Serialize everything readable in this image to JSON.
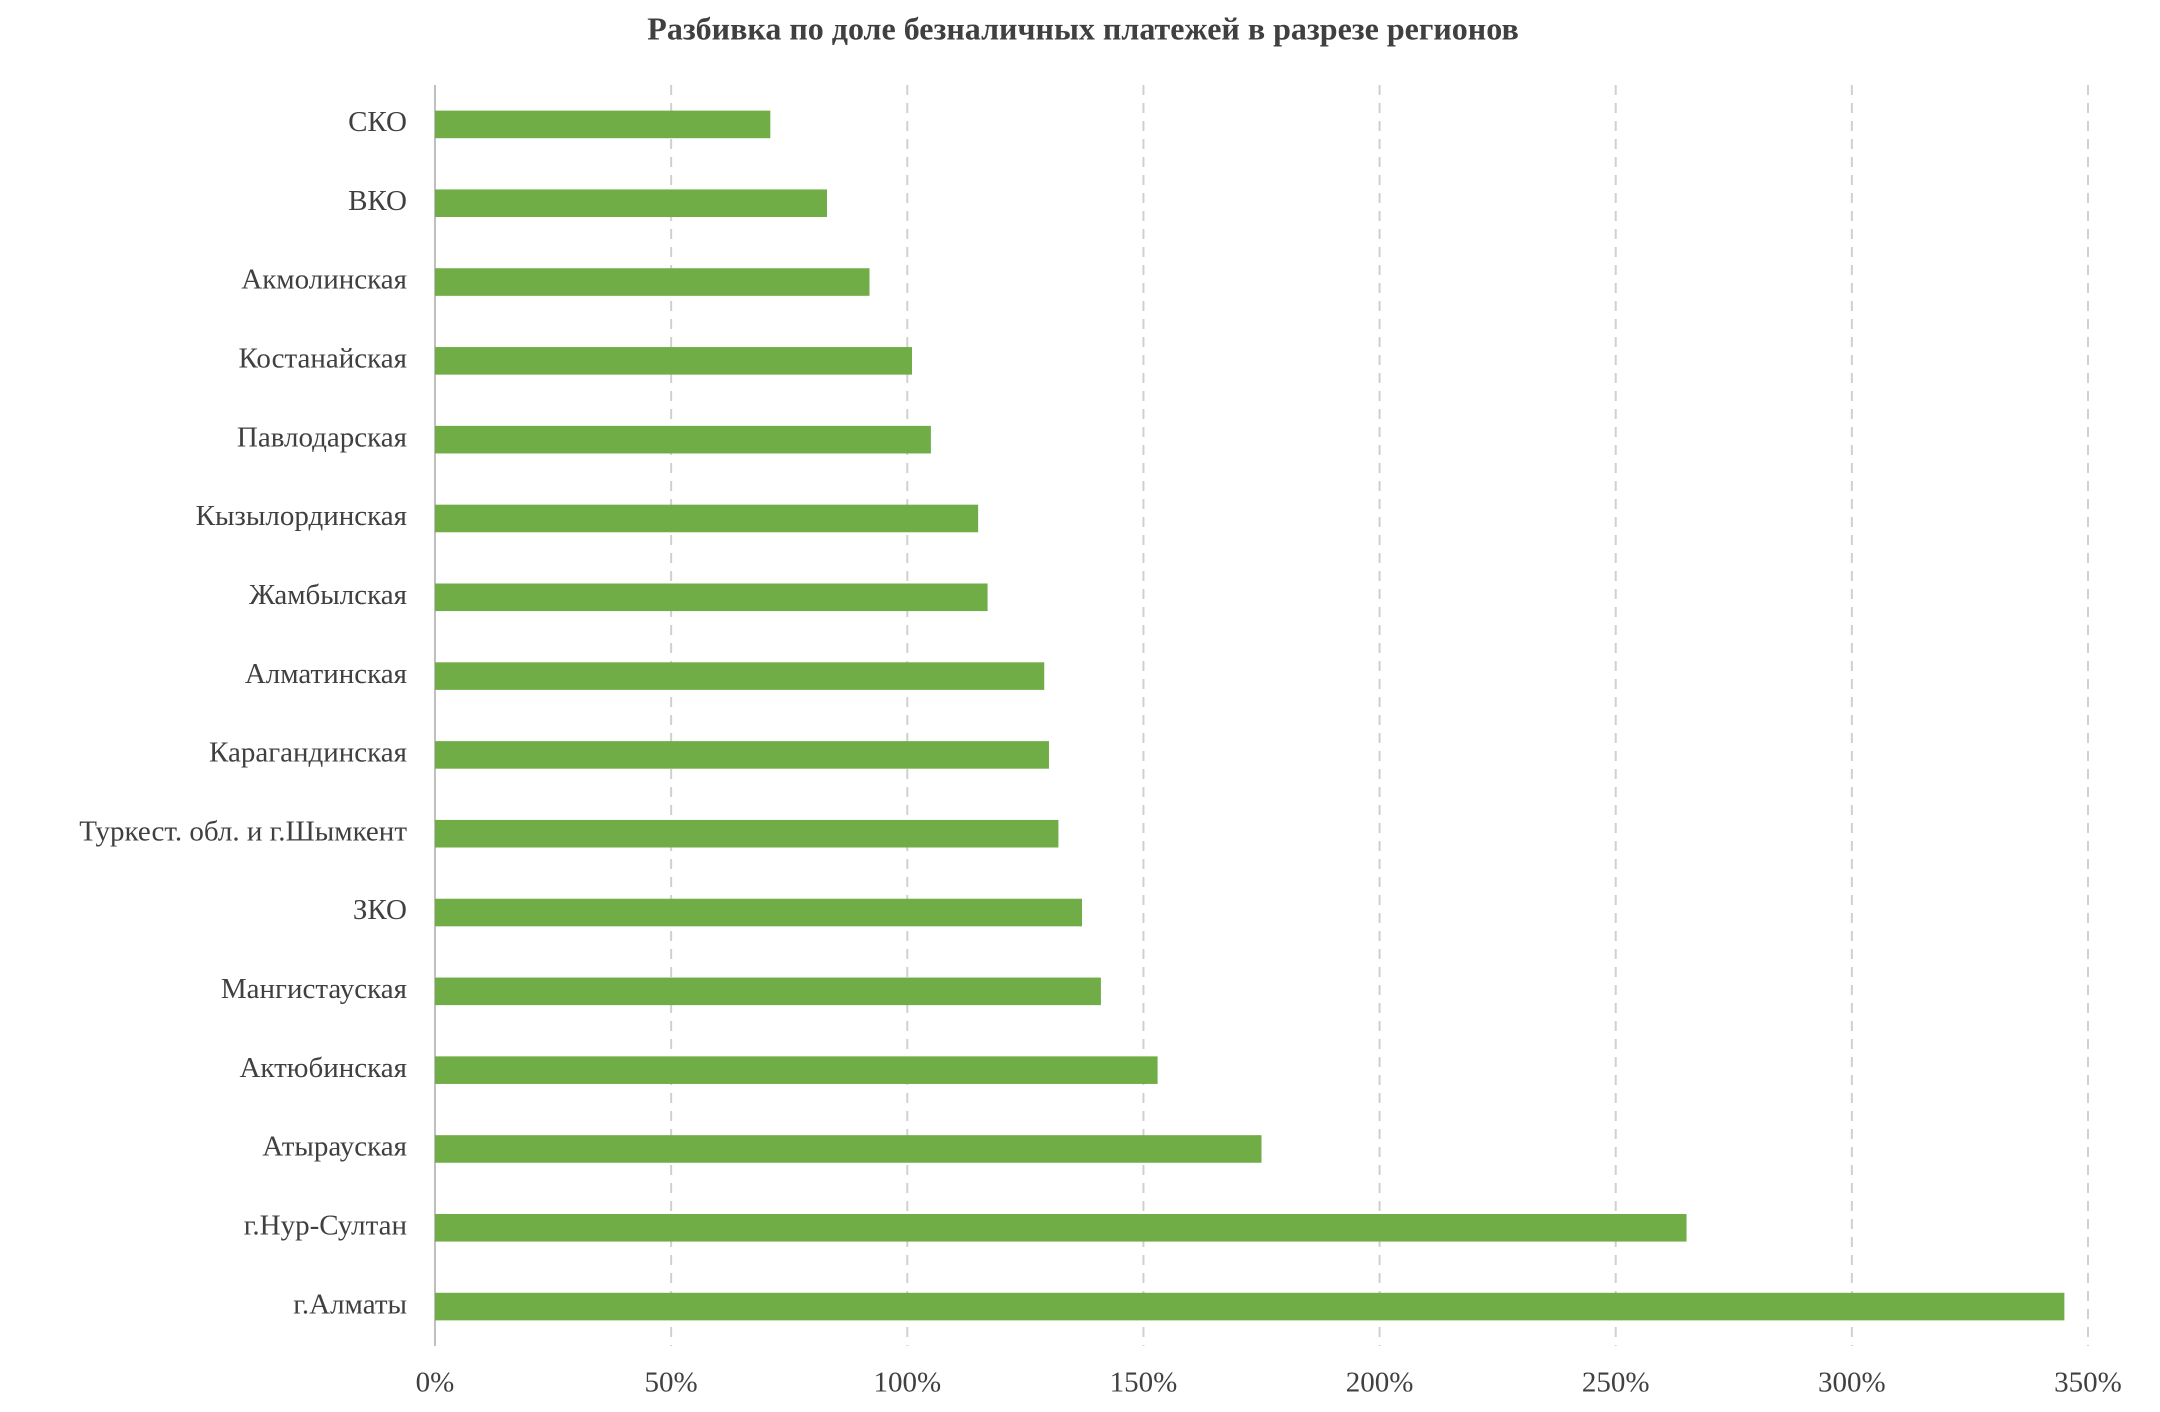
{
  "chart_data": {
    "type": "hbar",
    "title": "Разбивка по доле безналичных платежей в разрезе регионов",
    "categories": [
      "СКО",
      "ВКО",
      "Акмолинская",
      "Костанайская",
      "Павлодарская",
      "Кызылординская",
      "Жамбылская",
      "Алматинская",
      "Карагандинская",
      "Туркест. обл. и г.Шымкент",
      "ЗКО",
      "Мангистауская",
      "Актюбинская",
      "Атырауская",
      "г.Нур-Султан",
      "г.Алматы"
    ],
    "values": [
      71,
      83,
      92,
      101,
      105,
      115,
      117,
      129,
      130,
      132,
      137,
      141,
      153,
      175,
      265,
      345
    ],
    "color": "#70ad47",
    "xlim": [
      0,
      350
    ],
    "xticks": [
      {
        "value": 0,
        "label": "0%"
      },
      {
        "value": 50,
        "label": "50%"
      },
      {
        "value": 100,
        "label": "100%"
      },
      {
        "value": 150,
        "label": "150%"
      },
      {
        "value": 200,
        "label": "200%"
      },
      {
        "value": 250,
        "label": "250%"
      },
      {
        "value": 300,
        "label": "300%"
      },
      {
        "value": 350,
        "label": "350%"
      }
    ],
    "grid": true
  }
}
